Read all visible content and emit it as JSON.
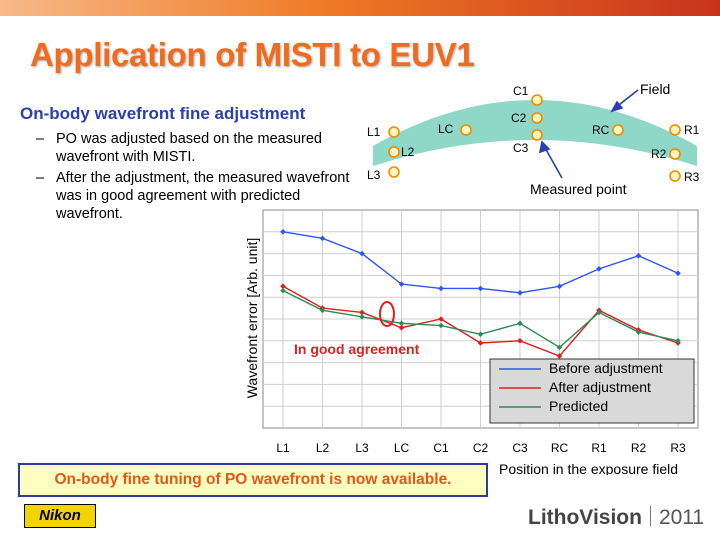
{
  "header_colors": {
    "title": "#f26a1b",
    "subhead": "#2b3fb0",
    "banner_text": "#e5561a"
  },
  "slide": {
    "title": "Application of MISTI to EUV1",
    "subhead": "On-body wavefront fine adjustment",
    "bullets": [
      {
        "dash": "–",
        "text": "PO was adjusted based on the measured wavefront with MISTI."
      },
      {
        "dash": "–",
        "text": "After the adjustment, the measured wavefront was in good agreement with predicted wavefront."
      }
    ],
    "banner": "On-body fine tuning of PO wavefront is now available.",
    "nikon_logo": "Nikon",
    "footer_brand": "LithoVision",
    "footer_year": "2011"
  },
  "field_diagram": {
    "field_label": "Field",
    "measured_label": "Measured point",
    "points": [
      "C1",
      "C2",
      "C3",
      "LC",
      "RC",
      "L1",
      "L2",
      "L3",
      "R1",
      "R2",
      "R3"
    ]
  },
  "chart_data": {
    "type": "line",
    "categories": [
      "L1",
      "L2",
      "L3",
      "LC",
      "C1",
      "C2",
      "C3",
      "RC",
      "R1",
      "R2",
      "R3"
    ],
    "xlabel": "Position in the exposure field",
    "ylabel": "Wavefront error [Arb. unit]",
    "ylim": [
      0,
      10
    ],
    "grid": true,
    "legend_position": "bottom-right",
    "annotation": "In good agreement",
    "series": [
      {
        "name": "Before adjustment",
        "color": "#3355ee",
        "values": [
          9.0,
          8.7,
          8.0,
          6.6,
          6.4,
          6.4,
          6.2,
          6.5,
          7.3,
          7.9,
          7.1
        ]
      },
      {
        "name": "After adjustment",
        "color": "#dd1f1f",
        "values": [
          6.5,
          5.5,
          5.3,
          4.6,
          5.0,
          3.9,
          4.0,
          3.3,
          5.4,
          4.5,
          3.9
        ]
      },
      {
        "name": "Predicted",
        "color": "#2e8b57",
        "values": [
          6.3,
          5.4,
          5.1,
          4.8,
          4.7,
          4.3,
          4.8,
          3.7,
          5.3,
          4.4,
          4.0
        ]
      }
    ]
  }
}
